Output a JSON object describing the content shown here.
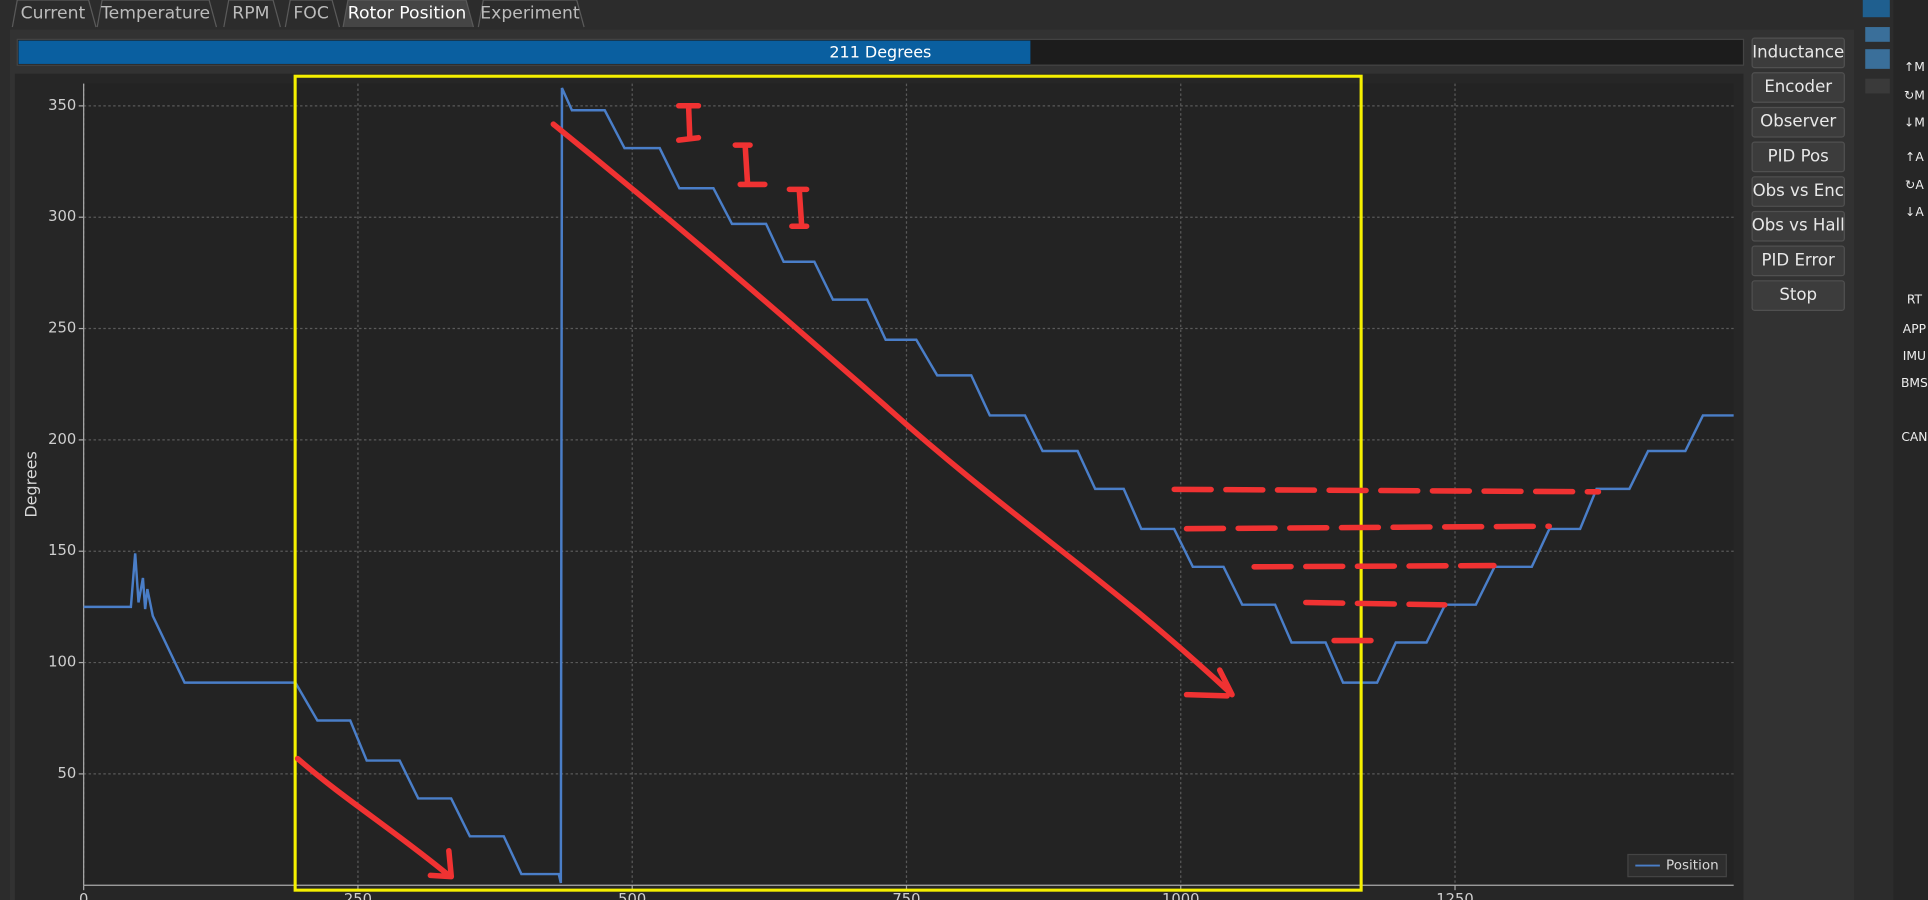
{
  "tabs": [
    "Current",
    "Temperature",
    "RPM",
    "FOC",
    "Rotor Position",
    "Experiment"
  ],
  "progress_label": "211 Degrees",
  "buttons": [
    "Inductance",
    "Encoder",
    "Observer",
    "PID Pos",
    "Obs vs Enc",
    "Obs vs Hall",
    "PID Error",
    "Stop"
  ],
  "sidebar": [
    "↑M",
    "↻M",
    "↓M",
    "↑A",
    "↻A",
    "↓A",
    "RT",
    "APP",
    "IMU",
    "BMS",
    "CAN"
  ],
  "chart_data": {
    "type": "line",
    "y_label": "Degrees",
    "x": [
      0,
      43,
      47,
      50,
      54,
      56,
      58,
      63,
      92,
      193,
      213,
      243,
      258,
      288,
      305,
      335,
      352,
      383,
      399,
      433,
      435,
      436,
      445,
      475,
      493,
      525,
      543,
      574,
      591,
      622,
      638,
      666,
      683,
      714,
      731,
      759,
      778,
      809,
      826,
      858,
      874,
      906,
      922,
      948,
      964,
      994,
      1011,
      1039,
      1056,
      1086,
      1101,
      1132,
      1148,
      1179,
      1196,
      1224,
      1241,
      1269,
      1286,
      1320,
      1336,
      1364,
      1379,
      1409,
      1426,
      1460,
      1476,
      1504
    ],
    "series": [
      {
        "name": "Position",
        "color": "#4a7ec8",
        "values": [
          125,
          125,
          149,
          127,
          138,
          124,
          133,
          121,
          91,
          91,
          74,
          74,
          56,
          56,
          39,
          39,
          22,
          22,
          5,
          5,
          1,
          358,
          348,
          348,
          331,
          331,
          313,
          313,
          297,
          297,
          280,
          280,
          263,
          263,
          245,
          245,
          229,
          229,
          211,
          211,
          195,
          195,
          178,
          178,
          160,
          160,
          143,
          143,
          126,
          126,
          109,
          109,
          91,
          91,
          109,
          109,
          126,
          126,
          143,
          143,
          160,
          160,
          178,
          178,
          195,
          195,
          211,
          211
        ]
      }
    ],
    "xlim": [
      0,
      1504
    ],
    "ylim": [
      0,
      360
    ],
    "xticks": [
      0,
      250,
      500,
      750,
      1000,
      1250
    ],
    "yticks": [
      50,
      100,
      150,
      200,
      250,
      300,
      350
    ],
    "grid": true,
    "legend": "lower right"
  }
}
